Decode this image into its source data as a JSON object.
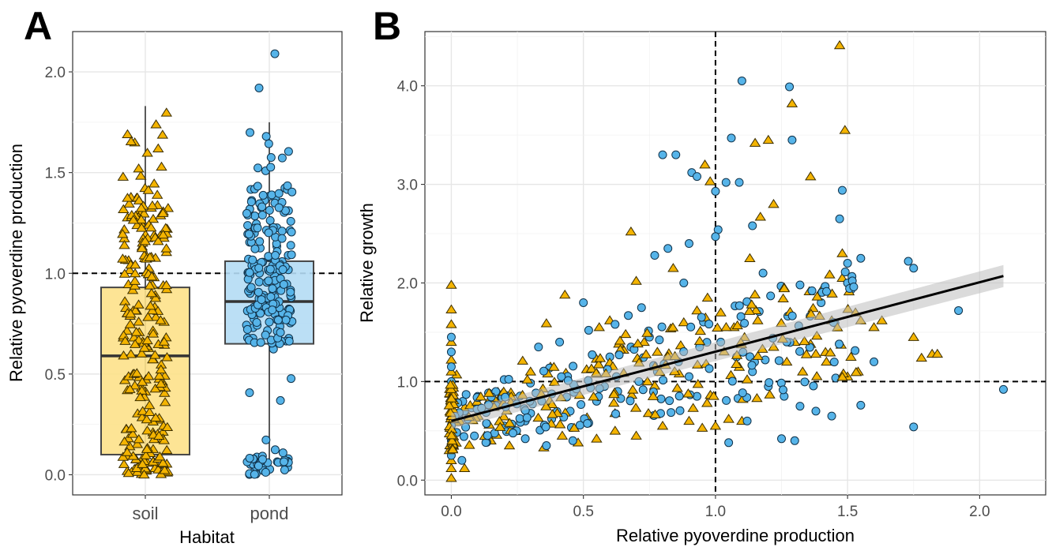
{
  "colors": {
    "soil": "#f4b400",
    "pond": "#56b4e9",
    "soil_box": "#fde28a",
    "pond_box": "#b4dcf5"
  },
  "chart_data": [
    {
      "panel": "A",
      "type": "box",
      "xlabel": "Habitat",
      "ylabel": "Relative pyoverdine production",
      "categories": [
        "soil",
        "pond"
      ],
      "ylim": [
        -0.1,
        2.2
      ],
      "yticks": [
        "0.0",
        "0.5",
        "1.0",
        "1.5",
        "2.0"
      ],
      "reference_y": 1.0,
      "boxes": [
        {
          "category": "soil",
          "q1": 0.1,
          "median": 0.59,
          "q3": 0.93,
          "lower": 0.0,
          "upper": 1.83,
          "marker": "triangle"
        },
        {
          "category": "pond",
          "q1": 0.65,
          "median": 0.86,
          "q3": 1.06,
          "lower": 0.0,
          "upper": 1.75,
          "marker": "circle",
          "outliers": [
            1.92,
            2.09
          ]
        }
      ],
      "grid": true
    },
    {
      "panel": "B",
      "type": "scatter",
      "xlabel": "Relative pyoverdine production",
      "ylabel": "Relative growth",
      "xlim": [
        -0.1,
        2.25
      ],
      "ylim": [
        -0.15,
        4.55
      ],
      "xticks": [
        "0.0",
        "0.5",
        "1.0",
        "1.5",
        "2.0"
      ],
      "yticks": [
        "0.0",
        "1.0",
        "2.0",
        "3.0",
        "4.0"
      ],
      "reference_x": 1.0,
      "reference_y": 1.0,
      "fit": {
        "x": [
          0.0,
          2.09
        ],
        "y": [
          0.6,
          2.07
        ]
      },
      "series": [
        {
          "marker": "triangle",
          "points": [
            [
              1.47,
              4.41
            ],
            [
              1.29,
              3.82
            ],
            [
              1.49,
              3.55
            ],
            [
              1.15,
              3.42
            ],
            [
              1.2,
              3.45
            ],
            [
              1.36,
              3.08
            ],
            [
              1.17,
              2.67
            ],
            [
              1.22,
              2.8
            ],
            [
              0.96,
              3.2
            ],
            [
              0.98,
              3.03
            ],
            [
              0.68,
              2.52
            ],
            [
              1.48,
              2.3
            ],
            [
              1.13,
              2.25
            ],
            [
              1.48,
              2.05
            ],
            [
              1.75,
              1.45
            ],
            [
              1.78,
              1.24
            ],
            [
              1.82,
              1.28
            ],
            [
              1.84,
              1.28
            ],
            [
              1.55,
              1.62
            ],
            [
              1.6,
              1.55
            ],
            [
              1.63,
              1.62
            ],
            [
              1.53,
              1.7
            ],
            [
              1.44,
              1.62
            ],
            [
              1.3,
              1.4
            ],
            [
              1.36,
              1.38
            ],
            [
              1.42,
              1.2
            ],
            [
              1.5,
              1.05
            ],
            [
              1.54,
              1.1
            ],
            [
              0.43,
              1.88
            ],
            [
              0.36,
              1.59
            ],
            [
              0.27,
              1.21
            ],
            [
              0.3,
              1.1
            ],
            [
              0.02,
              1.07
            ],
            [
              0.0,
              1.98
            ],
            [
              0.0,
              1.73
            ],
            [
              0.0,
              1.58
            ],
            [
              0.0,
              1.4
            ],
            [
              0.0,
              1.22
            ],
            [
              0.0,
              1.1
            ],
            [
              0.0,
              0.95
            ],
            [
              0.0,
              0.8
            ],
            [
              0.0,
              0.65
            ],
            [
              0.0,
              0.5
            ],
            [
              0.0,
              0.35
            ],
            [
              0.0,
              0.2
            ],
            [
              0.0,
              0.02
            ],
            [
              0.0,
              0.12
            ],
            [
              0.05,
              0.12
            ],
            [
              0.84,
              2.15
            ],
            [
              0.7,
              2.02
            ],
            [
              0.6,
              1.62
            ],
            [
              0.56,
              1.55
            ],
            [
              0.66,
              1.48
            ],
            [
              0.73,
              1.4
            ],
            [
              0.78,
              1.3
            ],
            [
              0.88,
              1.6
            ],
            [
              0.93,
              1.72
            ],
            [
              0.97,
              1.85
            ],
            [
              1.02,
              1.7
            ],
            [
              1.07,
              1.55
            ],
            [
              1.11,
              1.45
            ],
            [
              1.16,
              1.62
            ],
            [
              1.22,
              1.35
            ],
            [
              1.27,
              1.2
            ],
            [
              1.33,
              1.1
            ],
            [
              1.38,
              1.28
            ],
            [
              0.15,
              0.4
            ],
            [
              0.22,
              0.35
            ],
            [
              0.35,
              0.33
            ],
            [
              0.42,
              0.45
            ],
            [
              0.48,
              0.38
            ],
            [
              0.55,
              0.42
            ],
            [
              0.62,
              0.5
            ],
            [
              0.7,
              0.45
            ],
            [
              0.8,
              0.55
            ],
            [
              0.9,
              0.6
            ],
            [
              0.95,
              0.53
            ],
            [
              1.0,
              0.55
            ],
            [
              1.05,
              0.62
            ],
            [
              1.1,
              0.6
            ]
          ]
        },
        {
          "marker": "circle",
          "points": [
            [
              1.1,
              4.05
            ],
            [
              1.28,
              3.99
            ],
            [
              1.29,
              3.45
            ],
            [
              1.06,
              3.47
            ],
            [
              0.8,
              3.3
            ],
            [
              0.85,
              3.3
            ],
            [
              0.91,
              3.12
            ],
            [
              0.93,
              3.08
            ],
            [
              1.0,
              2.93
            ],
            [
              1.04,
              3.02
            ],
            [
              1.09,
              3.02
            ],
            [
              1.01,
              2.54
            ],
            [
              1.0,
              2.47
            ],
            [
              0.9,
              2.4
            ],
            [
              1.14,
              2.58
            ],
            [
              1.48,
              2.94
            ],
            [
              1.47,
              2.65
            ],
            [
              1.5,
              2.2
            ],
            [
              1.55,
              2.25
            ],
            [
              1.73,
              2.22
            ],
            [
              1.75,
              2.15
            ],
            [
              1.92,
              1.72
            ],
            [
              2.09,
              0.92
            ],
            [
              1.75,
              0.54
            ],
            [
              1.55,
              0.76
            ],
            [
              1.6,
              1.2
            ],
            [
              1.4,
              1.8
            ],
            [
              1.32,
              1.98
            ],
            [
              1.18,
              2.1
            ],
            [
              0.77,
              2.28
            ],
            [
              0.82,
              2.35
            ],
            [
              0.88,
              2.0
            ],
            [
              0.72,
              1.75
            ],
            [
              0.67,
              1.67
            ],
            [
              0.62,
              1.58
            ],
            [
              0.5,
              1.8
            ],
            [
              0.52,
              1.52
            ],
            [
              0.41,
              1.4
            ],
            [
              0.33,
              1.35
            ],
            [
              0.2,
              1.02
            ],
            [
              0.1,
              0.85
            ],
            [
              0.05,
              0.7
            ],
            [
              0.0,
              1.45
            ],
            [
              0.0,
              1.3
            ],
            [
              0.0,
              1.15
            ],
            [
              0.0,
              1.0
            ],
            [
              0.0,
              0.9
            ],
            [
              0.0,
              0.75
            ],
            [
              0.0,
              0.55
            ],
            [
              0.0,
              0.4
            ],
            [
              0.0,
              0.25
            ],
            [
              0.04,
              0.2
            ],
            [
              0.2,
              0.55
            ],
            [
              0.28,
              0.6
            ],
            [
              0.38,
              0.62
            ],
            [
              0.45,
              0.7
            ],
            [
              0.55,
              0.8
            ],
            [
              0.63,
              0.9
            ],
            [
              0.71,
              1.0
            ],
            [
              0.78,
              1.1
            ],
            [
              0.86,
              1.2
            ],
            [
              0.94,
              1.35
            ],
            [
              1.02,
              1.4
            ],
            [
              1.08,
              1.25
            ],
            [
              1.14,
              1.1
            ],
            [
              1.2,
              0.95
            ],
            [
              1.26,
              0.85
            ],
            [
              1.32,
              0.75
            ],
            [
              1.38,
              0.7
            ],
            [
              1.44,
              0.65
            ],
            [
              1.05,
              0.38
            ],
            [
              1.25,
              0.42
            ],
            [
              1.3,
              0.4
            ],
            [
              1.12,
              0.6
            ],
            [
              0.93,
              0.85
            ],
            [
              0.9,
              1.05
            ],
            [
              0.75,
              1.45
            ],
            [
              0.68,
              1.35
            ],
            [
              0.6,
              1.25
            ],
            [
              0.58,
              0.95
            ],
            [
              0.46,
              0.4
            ],
            [
              0.36,
              0.35
            ],
            [
              0.28,
              0.42
            ]
          ]
        }
      ],
      "grid": true
    }
  ]
}
